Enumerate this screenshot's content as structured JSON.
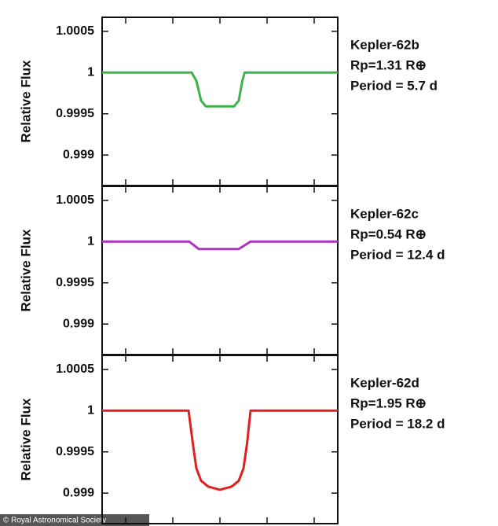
{
  "chart_data": [
    {
      "type": "line",
      "y_label": "Relative Flux",
      "annotations": [
        "Kepler-62b",
        "Rp=1.31 R⊕",
        "Period = 5.7 d"
      ],
      "x": [
        -5,
        -1.2,
        -1.0,
        -0.8,
        -0.6,
        0.6,
        0.8,
        0.95,
        1.05,
        5
      ],
      "series": [
        {
          "color": "#3cb34a",
          "values": [
            1,
            1,
            0.9999,
            0.99966,
            0.99959,
            0.99959,
            0.99966,
            0.9999,
            1,
            1
          ]
        }
      ],
      "xlim": [
        -5,
        5
      ],
      "xticks": [
        -4,
        -2,
        0,
        2,
        4
      ],
      "ylim": [
        0.99863,
        1.00067
      ],
      "yticks": [
        1.0005,
        1,
        0.9995,
        0.999
      ]
    },
    {
      "type": "line",
      "y_label": "Relative Flux",
      "annotations": [
        "Kepler-62c",
        "Rp=0.54 R⊕",
        "Period = 12.4 d"
      ],
      "x": [
        -5,
        -1.3,
        -0.9,
        0.8,
        1.3,
        5
      ],
      "series": [
        {
          "color": "#b030c0",
          "values": [
            1,
            1,
            0.99991,
            0.99991,
            1,
            1
          ]
        }
      ],
      "xlim": [
        -5,
        5
      ],
      "xticks": [
        -4,
        -2,
        0,
        2,
        4
      ],
      "ylim": [
        0.99863,
        1.00067
      ],
      "yticks": [
        1.0005,
        1,
        0.9995,
        0.999
      ]
    },
    {
      "type": "line",
      "y_label": "Relative Flux",
      "annotations": [
        "Kepler-62d",
        "Rp=1.95 R⊕",
        "Period = 18.2 d"
      ],
      "x": [
        -5,
        -1.33,
        -1.15,
        -1.0,
        -0.8,
        -0.5,
        0,
        0.5,
        0.8,
        1.0,
        1.15,
        1.3,
        5
      ],
      "series": [
        {
          "color": "#e02020",
          "values": [
            1,
            1,
            0.9996,
            0.9993,
            0.99915,
            0.99908,
            0.99904,
            0.99908,
            0.99915,
            0.9993,
            0.9996,
            1,
            1
          ]
        }
      ],
      "xlim": [
        -5,
        5
      ],
      "xticks": [
        -4,
        -2,
        0,
        2,
        4
      ],
      "ylim": [
        0.99863,
        1.00067
      ],
      "yticks": [
        1.0005,
        1,
        0.9995,
        0.999
      ]
    }
  ],
  "credit": "© Royal Astronomical Society"
}
